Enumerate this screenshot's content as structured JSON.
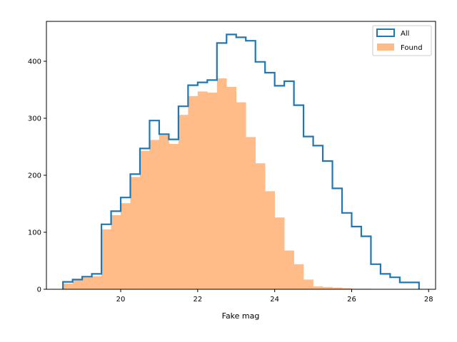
{
  "chart_data": {
    "type": "bar",
    "xlabel": "Fake mag",
    "ylabel": "",
    "xlim": [
      18.07,
      28.18
    ],
    "ylim": [
      0,
      470
    ],
    "x_ticks": [
      20,
      22,
      24,
      26,
      28
    ],
    "y_ticks": [
      0,
      100,
      200,
      300,
      400
    ],
    "grid": false,
    "legend_position": "top-right",
    "bin_edges": [
      18.5,
      18.75,
      19.0,
      19.25,
      19.5,
      19.75,
      20.0,
      20.25,
      20.5,
      20.75,
      21.0,
      21.25,
      21.5,
      21.75,
      22.0,
      22.25,
      22.5,
      22.75,
      23.0,
      23.25,
      23.5,
      23.75,
      24.0,
      24.25,
      24.5,
      24.75,
      25.0,
      25.25,
      25.5,
      25.75,
      26.0,
      26.25,
      26.5,
      26.75,
      27.0,
      27.25,
      27.5,
      27.75
    ],
    "series": [
      {
        "name": "All",
        "style": "step",
        "color": "#1f77b4",
        "values": [
          13,
          17,
          22,
          27,
          114,
          137,
          161,
          202,
          247,
          296,
          272,
          263,
          321,
          358,
          363,
          367,
          432,
          447,
          442,
          436,
          399,
          380,
          357,
          365,
          323,
          268,
          252,
          225,
          177,
          134,
          110,
          93,
          44,
          27,
          21,
          12,
          12
        ]
      },
      {
        "name": "Found",
        "style": "filled",
        "color": "#ffbb88",
        "values": [
          10,
          16,
          20,
          23,
          105,
          130,
          151,
          197,
          243,
          262,
          270,
          255,
          306,
          339,
          347,
          345,
          370,
          355,
          328,
          267,
          221,
          172,
          126,
          68,
          44,
          17,
          5,
          4,
          3,
          2,
          1,
          1,
          0,
          0,
          0,
          0,
          0
        ]
      }
    ]
  }
}
